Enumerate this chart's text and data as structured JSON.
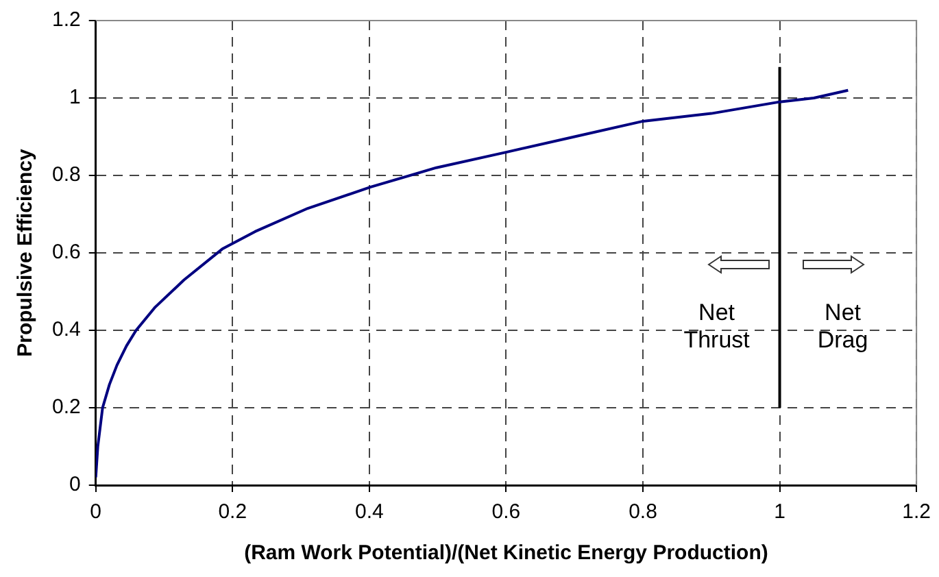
{
  "chart_data": {
    "type": "line",
    "xlabel": "(Ram Work Potential)/(Net Kinetic Energy Production)",
    "ylabel": "Propulsive Efficiency",
    "xlim": [
      0,
      1.2
    ],
    "xticks": [
      0,
      0.2,
      0.4,
      0.6,
      0.8,
      1,
      1.2
    ],
    "ylim": [
      0,
      1.2
    ],
    "yticks": [
      0,
      0.2,
      0.4,
      0.6,
      0.8,
      1,
      1.2
    ],
    "series": [
      {
        "color": "#000080",
        "x": [
          0,
          0.003,
          0.01,
          0.02,
          0.031,
          0.045,
          0.059,
          0.087,
          0.129,
          0.185,
          0.233,
          0.31,
          0.402,
          0.498,
          0.6,
          0.7,
          0.8,
          0.9,
          1,
          1.05,
          1.1
        ],
        "values": [
          0.02,
          0.1,
          0.2,
          0.26,
          0.31,
          0.36,
          0.4,
          0.46,
          0.53,
          0.61,
          0.655,
          0.715,
          0.77,
          0.82,
          0.86,
          0.9,
          0.94,
          0.96,
          0.99,
          1.0,
          1.02
        ]
      },
      {
        "color": "#000000",
        "x": [
          1,
          1
        ],
        "values": [
          0.2,
          1.08
        ]
      }
    ],
    "annotations": [
      "Net Thrust",
      "Net Drag"
    ],
    "grid": true,
    "legend": false,
    "marker": "none",
    "line_style": "solid"
  }
}
